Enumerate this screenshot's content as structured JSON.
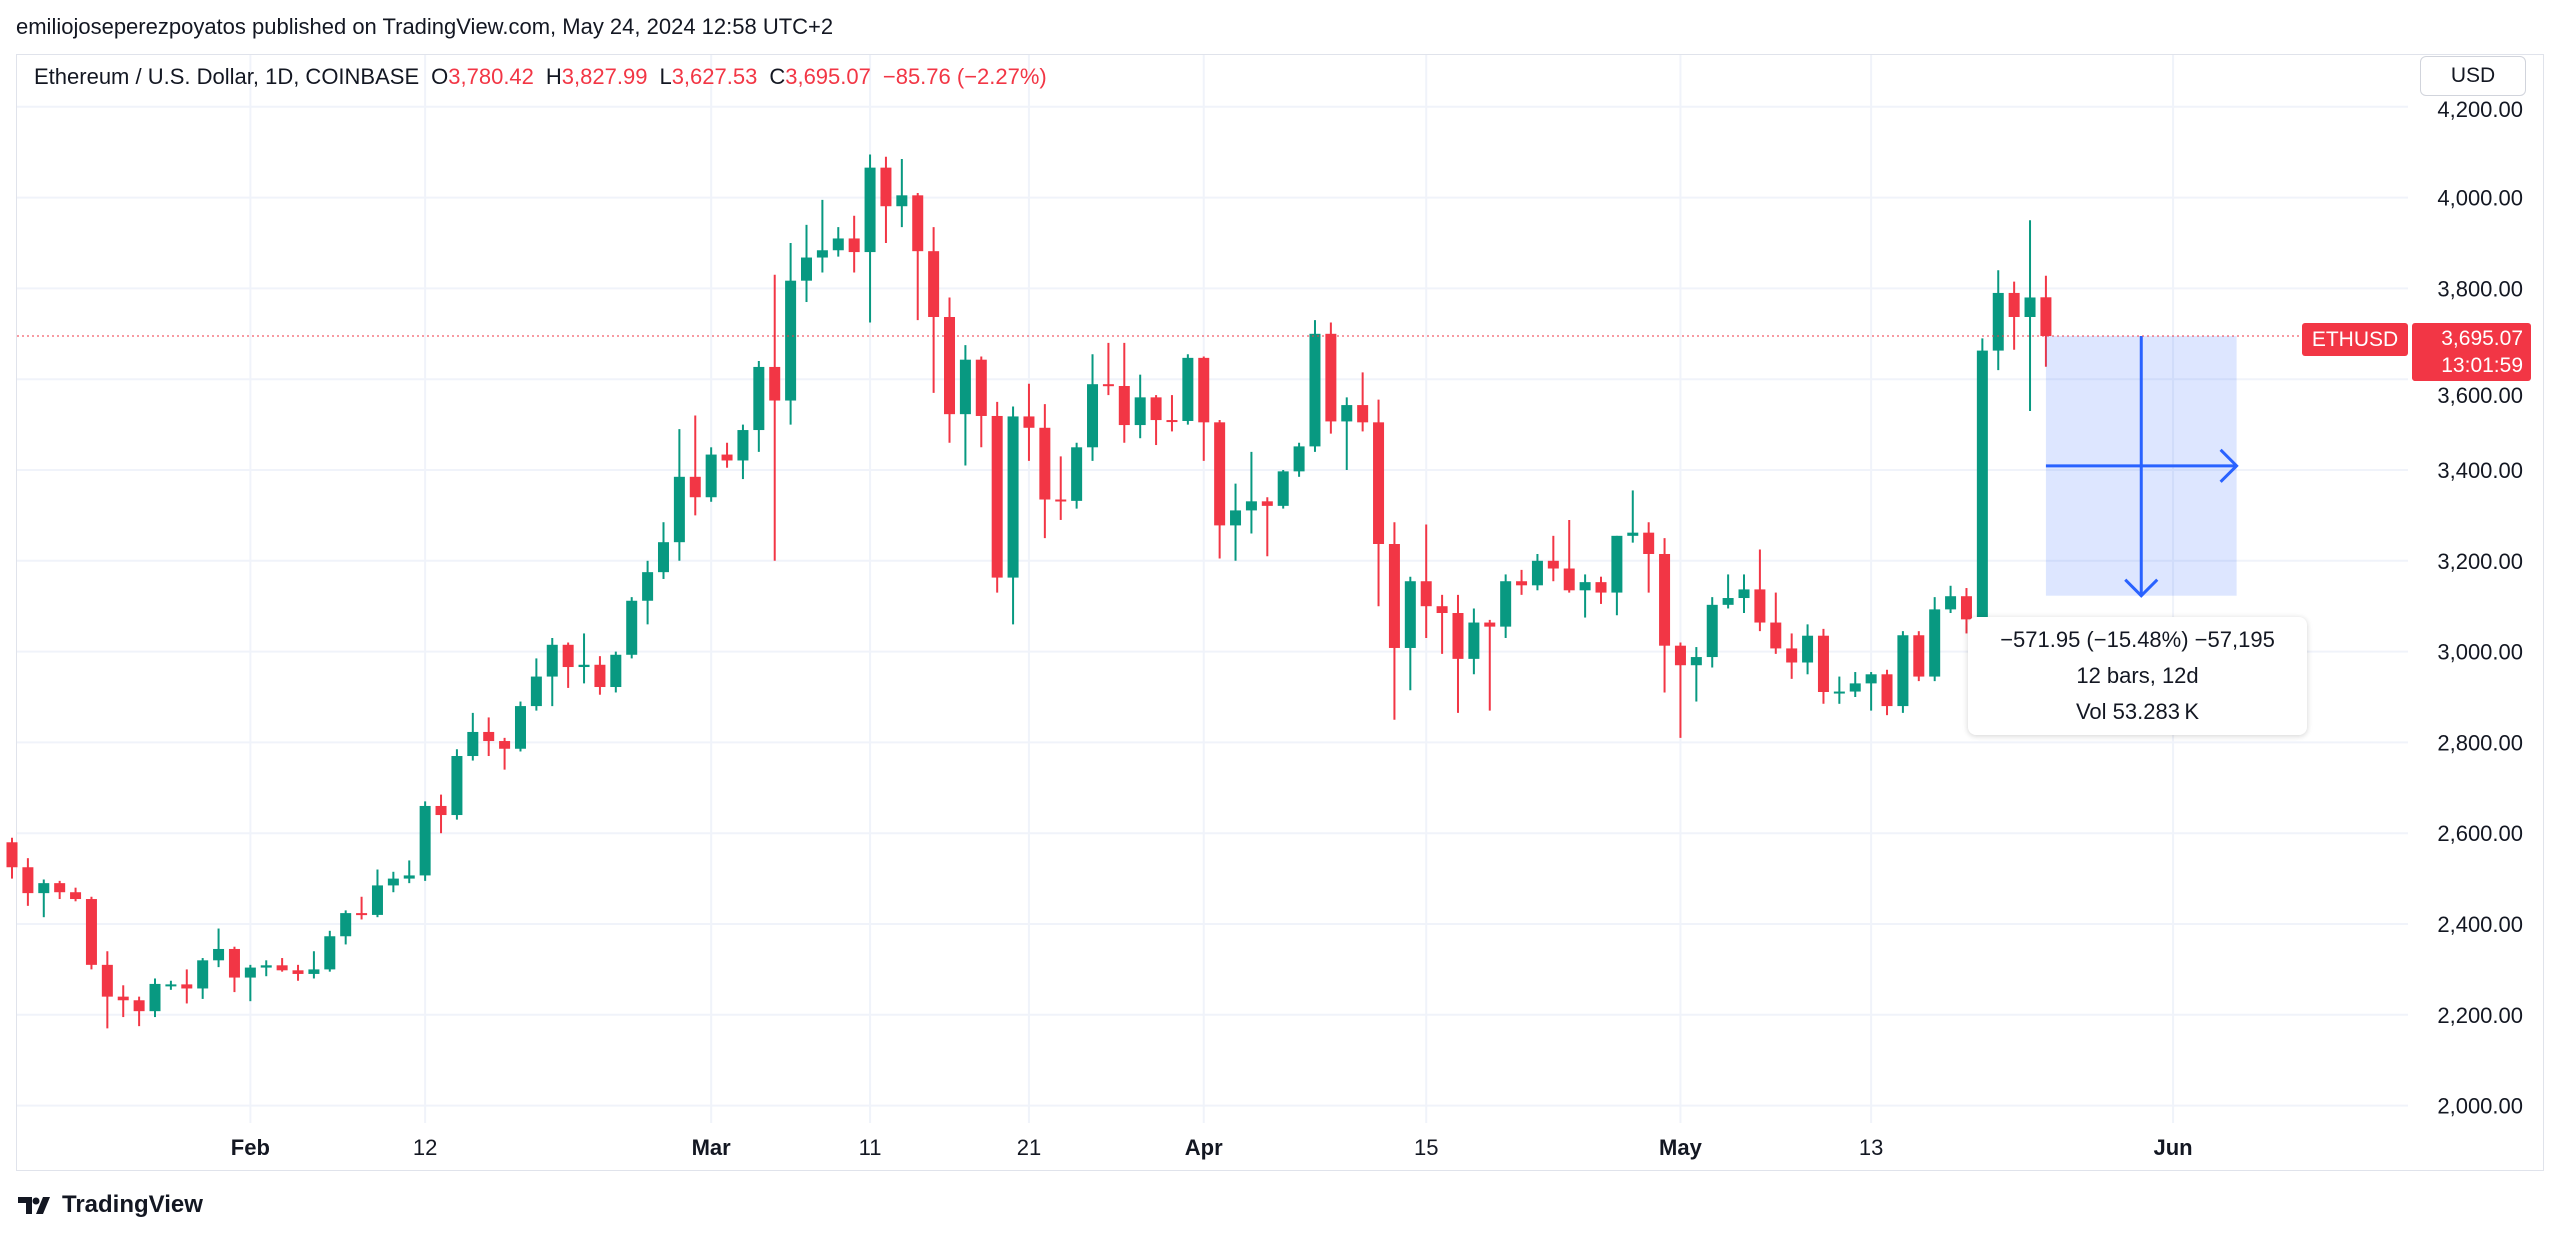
{
  "header": {
    "publish_line": "emiliojoseperezpoyatos published on TradingView.com, May 24, 2024 12:58 UTC+2"
  },
  "legend": {
    "symbol": "Ethereum / U.S. Dollar, 1D, COINBASE",
    "o_key": "O",
    "o": "3,780.42",
    "h_key": "H",
    "h": "3,827.99",
    "l_key": "L",
    "l": "3,627.53",
    "c_key": "C",
    "c": "3,695.07",
    "change": "−85.76 (−2.27%)"
  },
  "currency_button": "USD",
  "last_price": {
    "symbol": "ETHUSD",
    "price": "3,695.07",
    "countdown": "13:01:59"
  },
  "measure": {
    "line1": "−571.95 (−15.48%) −57,195",
    "line2": "12 bars, 12d",
    "line3": "Vol 53.283 K",
    "from_price": 3695.07,
    "to_price": 3123.12,
    "bars": 12
  },
  "branding": {
    "logo_text": "TradingView"
  },
  "colors": {
    "up": "#089981",
    "down": "#F23645",
    "measure": "#2962FF"
  },
  "chart_data": {
    "type": "candlestick",
    "title": "Ethereum / U.S. Dollar, 1D, COINBASE",
    "ylim": [
      2000,
      4200
    ],
    "y_ticks": [
      "2,000.00",
      "2,200.00",
      "2,400.00",
      "2,600.00",
      "2,800.00",
      "3,000.00",
      "3,200.00",
      "3,400.00",
      "3,600.00",
      "3,800.00",
      "4,000.00",
      "4,200.00"
    ],
    "y_tick_values": [
      2000,
      2200,
      2400,
      2600,
      2800,
      3000,
      3200,
      3400,
      3600,
      3800,
      4000,
      4200
    ],
    "x_ticks": [
      {
        "label": "Feb",
        "day": 15
      },
      {
        "label": "12",
        "day": 26
      },
      {
        "label": "Mar",
        "day": 44
      },
      {
        "label": "11",
        "day": 54
      },
      {
        "label": "21",
        "day": 64
      },
      {
        "label": "Apr",
        "day": 75
      },
      {
        "label": "15",
        "day": 89
      },
      {
        "label": "May",
        "day": 105
      },
      {
        "label": "13",
        "day": 117
      },
      {
        "label": "Jun",
        "day": 136
      }
    ],
    "grid": true,
    "candles_ohlc": [
      [
        2580,
        2590,
        2500,
        2525
      ],
      [
        2525,
        2545,
        2440,
        2468
      ],
      [
        2468,
        2498,
        2415,
        2490
      ],
      [
        2490,
        2495,
        2455,
        2470
      ],
      [
        2470,
        2480,
        2450,
        2455
      ],
      [
        2455,
        2460,
        2300,
        2310
      ],
      [
        2310,
        2340,
        2170,
        2240
      ],
      [
        2240,
        2265,
        2195,
        2232
      ],
      [
        2232,
        2240,
        2175,
        2208
      ],
      [
        2208,
        2280,
        2195,
        2268
      ],
      [
        2265,
        2275,
        2255,
        2267
      ],
      [
        2267,
        2300,
        2225,
        2258
      ],
      [
        2258,
        2325,
        2235,
        2320
      ],
      [
        2320,
        2390,
        2305,
        2345
      ],
      [
        2345,
        2350,
        2250,
        2282
      ],
      [
        2282,
        2310,
        2230,
        2304
      ],
      [
        2304,
        2320,
        2285,
        2309
      ],
      [
        2309,
        2325,
        2295,
        2298
      ],
      [
        2298,
        2310,
        2275,
        2290
      ],
      [
        2290,
        2340,
        2280,
        2300
      ],
      [
        2300,
        2385,
        2295,
        2373
      ],
      [
        2373,
        2430,
        2355,
        2424
      ],
      [
        2424,
        2460,
        2410,
        2420
      ],
      [
        2420,
        2520,
        2415,
        2485
      ],
      [
        2485,
        2515,
        2470,
        2500
      ],
      [
        2500,
        2540,
        2490,
        2507
      ],
      [
        2507,
        2670,
        2495,
        2660
      ],
      [
        2660,
        2685,
        2600,
        2640
      ],
      [
        2640,
        2785,
        2630,
        2770
      ],
      [
        2770,
        2865,
        2760,
        2823
      ],
      [
        2823,
        2855,
        2770,
        2803
      ],
      [
        2803,
        2810,
        2740,
        2786
      ],
      [
        2786,
        2890,
        2780,
        2880
      ],
      [
        2880,
        2985,
        2870,
        2945
      ],
      [
        2945,
        3030,
        2880,
        3015
      ],
      [
        3015,
        3020,
        2920,
        2966
      ],
      [
        2966,
        3040,
        2930,
        2971
      ],
      [
        2971,
        2990,
        2905,
        2922
      ],
      [
        2922,
        3000,
        2910,
        2993
      ],
      [
        2993,
        3120,
        2985,
        3112
      ],
      [
        3112,
        3200,
        3060,
        3175
      ],
      [
        3175,
        3285,
        3160,
        3241
      ],
      [
        3241,
        3490,
        3200,
        3385
      ],
      [
        3385,
        3520,
        3300,
        3340
      ],
      [
        3340,
        3450,
        3330,
        3434
      ],
      [
        3434,
        3460,
        3405,
        3421
      ],
      [
        3421,
        3500,
        3380,
        3488
      ],
      [
        3488,
        3640,
        3440,
        3627
      ],
      [
        3627,
        3830,
        3200,
        3553
      ],
      [
        3553,
        3900,
        3500,
        3817
      ],
      [
        3817,
        3940,
        3770,
        3868
      ],
      [
        3868,
        3995,
        3835,
        3884
      ],
      [
        3884,
        3935,
        3870,
        3910
      ],
      [
        3910,
        3960,
        3835,
        3880
      ],
      [
        3880,
        4095,
        3725,
        4066
      ],
      [
        4066,
        4090,
        3900,
        3981
      ],
      [
        3981,
        4085,
        3935,
        4005
      ],
      [
        4005,
        4010,
        3730,
        3882
      ],
      [
        3882,
        3935,
        3570,
        3737
      ],
      [
        3737,
        3780,
        3460,
        3523
      ],
      [
        3523,
        3675,
        3410,
        3643
      ],
      [
        3643,
        3650,
        3450,
        3519
      ],
      [
        3519,
        3550,
        3130,
        3163
      ],
      [
        3163,
        3540,
        3060,
        3518
      ],
      [
        3518,
        3590,
        3420,
        3493
      ],
      [
        3493,
        3545,
        3250,
        3335
      ],
      [
        3335,
        3430,
        3290,
        3332
      ],
      [
        3332,
        3460,
        3315,
        3450
      ],
      [
        3450,
        3655,
        3420,
        3589
      ],
      [
        3589,
        3680,
        3565,
        3585
      ],
      [
        3585,
        3680,
        3460,
        3499
      ],
      [
        3499,
        3610,
        3470,
        3560
      ],
      [
        3560,
        3565,
        3455,
        3510
      ],
      [
        3510,
        3565,
        3485,
        3508
      ],
      [
        3508,
        3655,
        3500,
        3647
      ],
      [
        3647,
        3650,
        3420,
        3505
      ],
      [
        3505,
        3510,
        3205,
        3278
      ],
      [
        3278,
        3370,
        3200,
        3311
      ],
      [
        3311,
        3440,
        3260,
        3331
      ],
      [
        3331,
        3340,
        3210,
        3321
      ],
      [
        3321,
        3400,
        3315,
        3397
      ],
      [
        3397,
        3460,
        3385,
        3452
      ],
      [
        3452,
        3730,
        3440,
        3700
      ],
      [
        3700,
        3725,
        3480,
        3507
      ],
      [
        3507,
        3560,
        3400,
        3543
      ],
      [
        3543,
        3615,
        3485,
        3505
      ],
      [
        3505,
        3555,
        3100,
        3237
      ],
      [
        3237,
        3285,
        2850,
        3008
      ],
      [
        3008,
        3165,
        2915,
        3155
      ],
      [
        3155,
        3280,
        3030,
        3100
      ],
      [
        3100,
        3125,
        2995,
        3085
      ],
      [
        3085,
        3125,
        2865,
        2984
      ],
      [
        2984,
        3095,
        2950,
        3064
      ],
      [
        3064,
        3070,
        2870,
        3055
      ],
      [
        3055,
        3170,
        3030,
        3155
      ],
      [
        3155,
        3180,
        3125,
        3146
      ],
      [
        3146,
        3215,
        3135,
        3200
      ],
      [
        3200,
        3255,
        3155,
        3183
      ],
      [
        3183,
        3290,
        3130,
        3135
      ],
      [
        3135,
        3170,
        3075,
        3153
      ],
      [
        3153,
        3165,
        3105,
        3130
      ],
      [
        3130,
        3255,
        3080,
        3255
      ],
      [
        3255,
        3355,
        3240,
        3262
      ],
      [
        3262,
        3285,
        3130,
        3215
      ],
      [
        3215,
        3250,
        2910,
        3013
      ],
      [
        3013,
        3020,
        2810,
        2970
      ],
      [
        2970,
        3010,
        2890,
        2988
      ],
      [
        2988,
        3120,
        2965,
        3103
      ],
      [
        3103,
        3170,
        3095,
        3118
      ],
      [
        3118,
        3170,
        3085,
        3137
      ],
      [
        3137,
        3225,
        3045,
        3064
      ],
      [
        3064,
        3130,
        2995,
        3007
      ],
      [
        3007,
        3040,
        2940,
        2976
      ],
      [
        2976,
        3060,
        2950,
        3035
      ],
      [
        3035,
        3050,
        2885,
        2911
      ],
      [
        2911,
        2945,
        2885,
        2912
      ],
      [
        2912,
        2955,
        2900,
        2930
      ],
      [
        2930,
        2955,
        2870,
        2950
      ],
      [
        2950,
        2960,
        2860,
        2880
      ],
      [
        2880,
        3045,
        2865,
        3036
      ],
      [
        3036,
        3045,
        2935,
        2945
      ],
      [
        2945,
        3120,
        2935,
        3093
      ],
      [
        3093,
        3145,
        3085,
        3122
      ],
      [
        3122,
        3140,
        3040,
        3071
      ],
      [
        3071,
        3690,
        3045,
        3663
      ],
      [
        3663,
        3840,
        3620,
        3790
      ],
      [
        3790,
        3815,
        3665,
        3737
      ],
      [
        3737,
        3950,
        3530,
        3780
      ],
      [
        3780.42,
        3827.99,
        3627.53,
        3695.07
      ]
    ]
  }
}
